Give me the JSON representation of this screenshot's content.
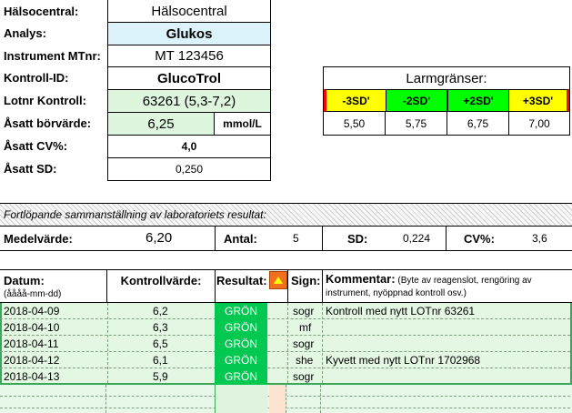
{
  "info": {
    "rows": [
      {
        "label": "Hälsocentral:",
        "value": "Hälsocentral"
      },
      {
        "label": "Analys:",
        "value": "Glukos"
      },
      {
        "label": "Instrument MTnr:",
        "value": "MT 123456"
      },
      {
        "label": "Kontroll-ID:",
        "value": "GlucoTrol"
      },
      {
        "label": "Lotnr Kontroll:",
        "value": "63261 (5,3-7,2)"
      },
      {
        "label": "Åsatt börvärde:",
        "value": "6,25",
        "unit": "mmol/L"
      },
      {
        "label": "Åsatt CV%:",
        "value": "4,0"
      },
      {
        "label": "Åsatt SD:",
        "value": "0,250"
      }
    ]
  },
  "alarm": {
    "title": "Larmgränser:",
    "headers": [
      "-3SD'",
      "-2SD'",
      "+2SD'",
      "+3SD'"
    ],
    "values": [
      "5,50",
      "5,75",
      "6,75",
      "7,00"
    ],
    "colors": {
      "yellow": "#ffff00",
      "green": "#00ff00",
      "red_edge": "#ff0000"
    }
  },
  "summary": {
    "title": "Fortlöpande sammanställning av laboratoriets resultat:",
    "medel_label": "Medelvärde:",
    "medel_value": "6,20",
    "antal_label": "Antal:",
    "antal_value": "5",
    "sd_label": "SD:",
    "sd_value": "0,224",
    "cv_label": "CV%:",
    "cv_value": "3,6"
  },
  "table": {
    "headers": {
      "datum": "Datum:",
      "datum_sub": "(åååå-mm-dd)",
      "kontroll": "Kontrollvärde:",
      "resultat": "Resultat:",
      "sign": "Sign:",
      "kommentar": "Kommentar:",
      "kommentar_sub": "(Byte av reagenslot, rengöring av instrument, nyöppnad kontroll osv.)"
    },
    "rows": [
      {
        "datum": "2018-04-09",
        "varde": "6,2",
        "resultat": "GRÖN",
        "sign": "sogr",
        "kommentar": "Kontroll med nytt LOTnr 63261"
      },
      {
        "datum": "2018-04-10",
        "varde": "6,3",
        "resultat": "GRÖN",
        "sign": "mf",
        "kommentar": ""
      },
      {
        "datum": "2018-04-11",
        "varde": "6,5",
        "resultat": "GRÖN",
        "sign": "sogr",
        "kommentar": ""
      },
      {
        "datum": "2018-04-12",
        "varde": "6,1",
        "resultat": "GRÖN",
        "sign": "she",
        "kommentar": "Kyvett med nytt LOTnr 1702968"
      },
      {
        "datum": "2018-04-13",
        "varde": "5,9",
        "resultat": "GRÖN",
        "sign": "sogr",
        "kommentar": ""
      }
    ],
    "colors": {
      "result_green": "#00c850",
      "row_bg": "#e3f7e3",
      "filter_orange": "#f07020"
    }
  }
}
